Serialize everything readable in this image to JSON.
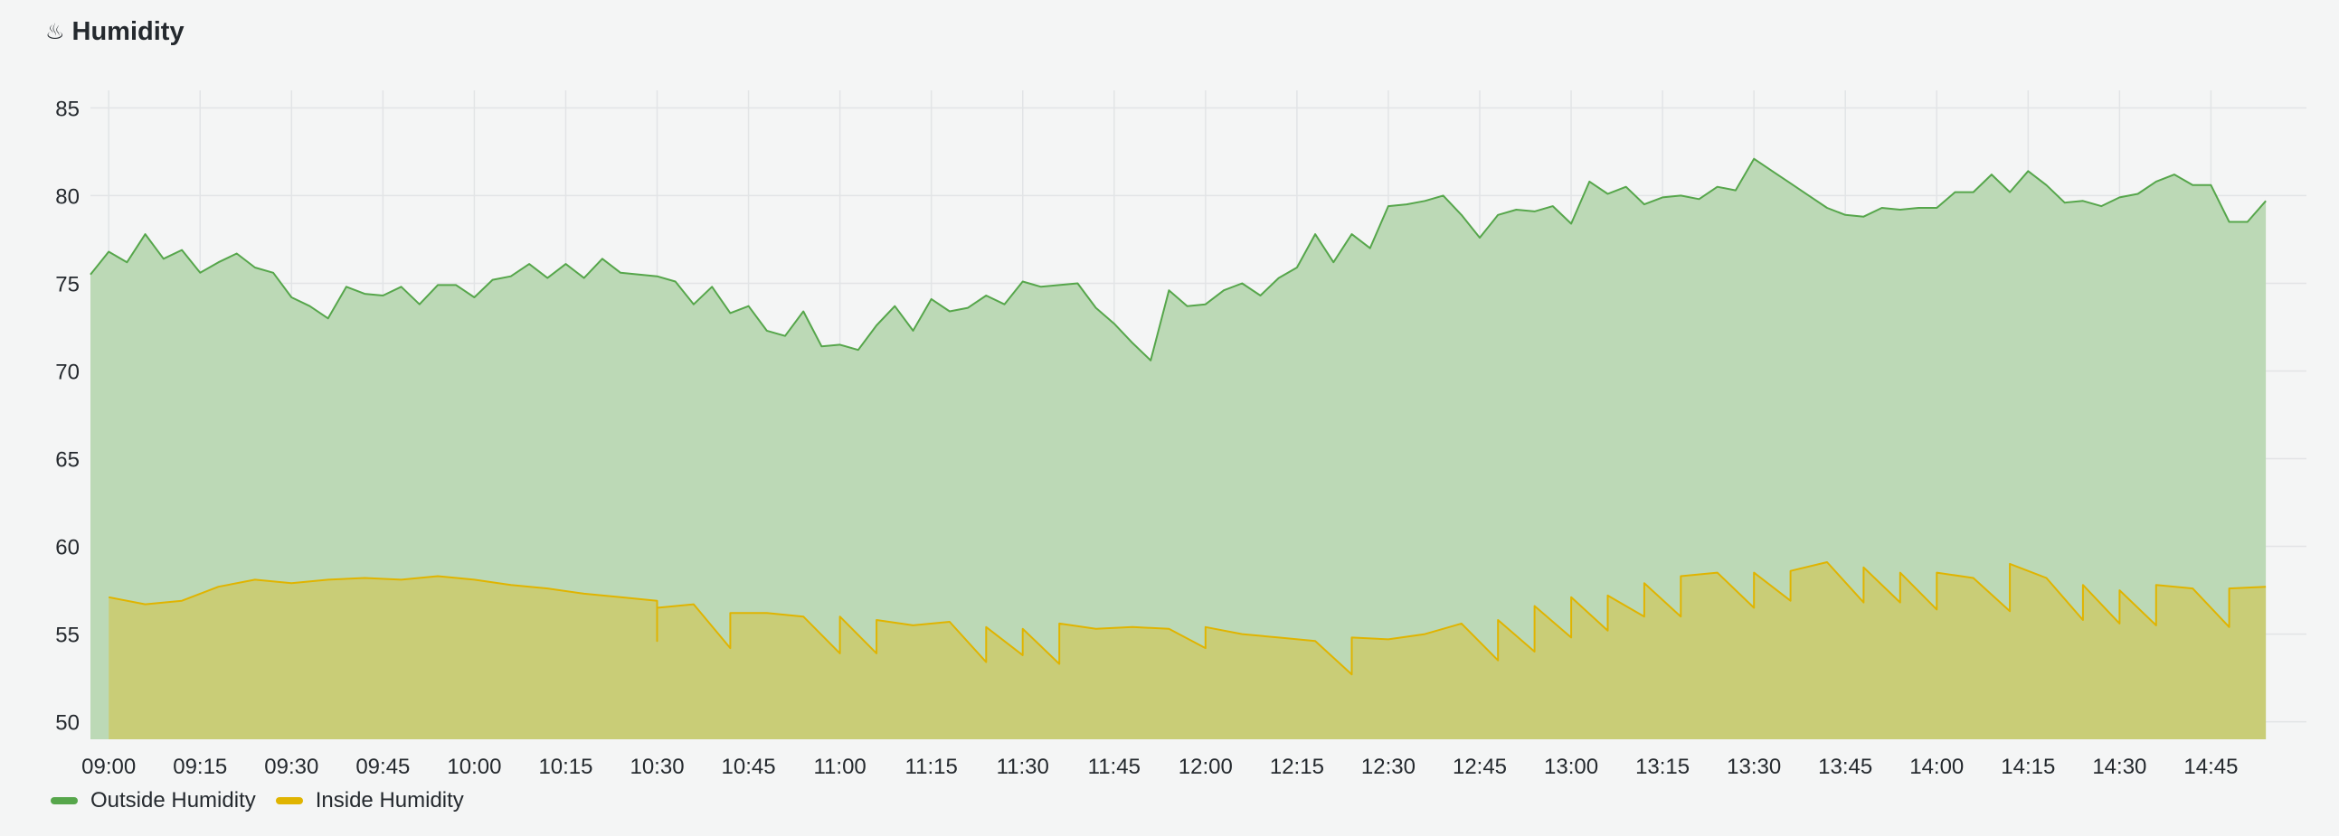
{
  "panel": {
    "title": "Humidity",
    "icon": "hot-springs-icon"
  },
  "chart_data": {
    "type": "area",
    "title": "Humidity",
    "xlabel": "",
    "ylabel": "",
    "x_ticks": [
      "09:00",
      "09:15",
      "09:30",
      "09:45",
      "10:00",
      "10:15",
      "10:30",
      "10:45",
      "11:00",
      "11:15",
      "11:30",
      "11:45",
      "12:00",
      "12:15",
      "12:30",
      "12:45",
      "13:00",
      "13:15",
      "13:30",
      "13:45",
      "14:00",
      "14:15",
      "14:30",
      "14:45"
    ],
    "y_ticks": [
      50,
      55,
      60,
      65,
      70,
      75,
      80,
      85
    ],
    "ylim": [
      49,
      86
    ],
    "xlim": [
      "08:57",
      "14:58"
    ],
    "grid": true,
    "legend": "bottom-left",
    "series": [
      {
        "name": "Outside Humidity",
        "color": "#56a64b",
        "fill": "#bcd9b6",
        "points": [
          [
            "08:57",
            75.5
          ],
          [
            "09:00",
            76.8
          ],
          [
            "09:03",
            76.2
          ],
          [
            "09:06",
            77.8
          ],
          [
            "09:09",
            76.4
          ],
          [
            "09:12",
            76.9
          ],
          [
            "09:15",
            75.6
          ],
          [
            "09:18",
            76.2
          ],
          [
            "09:21",
            76.7
          ],
          [
            "09:24",
            75.9
          ],
          [
            "09:27",
            75.6
          ],
          [
            "09:30",
            74.2
          ],
          [
            "09:33",
            73.7
          ],
          [
            "09:36",
            73.0
          ],
          [
            "09:39",
            74.8
          ],
          [
            "09:42",
            74.4
          ],
          [
            "09:45",
            74.3
          ],
          [
            "09:48",
            74.8
          ],
          [
            "09:51",
            73.8
          ],
          [
            "09:54",
            74.9
          ],
          [
            "09:57",
            74.9
          ],
          [
            "10:00",
            74.2
          ],
          [
            "10:03",
            75.2
          ],
          [
            "10:06",
            75.4
          ],
          [
            "10:09",
            76.1
          ],
          [
            "10:12",
            75.3
          ],
          [
            "10:15",
            76.1
          ],
          [
            "10:18",
            75.3
          ],
          [
            "10:21",
            76.4
          ],
          [
            "10:24",
            75.6
          ],
          [
            "10:27",
            75.5
          ],
          [
            "10:30",
            75.4
          ],
          [
            "10:33",
            75.1
          ],
          [
            "10:36",
            73.8
          ],
          [
            "10:39",
            74.8
          ],
          [
            "10:42",
            73.3
          ],
          [
            "10:45",
            73.7
          ],
          [
            "10:48",
            72.3
          ],
          [
            "10:51",
            72.0
          ],
          [
            "10:54",
            73.4
          ],
          [
            "10:57",
            71.4
          ],
          [
            "11:00",
            71.5
          ],
          [
            "11:03",
            71.2
          ],
          [
            "11:06",
            72.6
          ],
          [
            "11:09",
            73.7
          ],
          [
            "11:12",
            72.3
          ],
          [
            "11:15",
            74.1
          ],
          [
            "11:18",
            73.4
          ],
          [
            "11:21",
            73.6
          ],
          [
            "11:24",
            74.3
          ],
          [
            "11:27",
            73.8
          ],
          [
            "11:30",
            75.1
          ],
          [
            "11:33",
            74.8
          ],
          [
            "11:36",
            74.9
          ],
          [
            "11:39",
            75.0
          ],
          [
            "11:42",
            73.6
          ],
          [
            "11:45",
            72.7
          ],
          [
            "11:48",
            71.6
          ],
          [
            "11:51",
            70.6
          ],
          [
            "11:54",
            74.6
          ],
          [
            "11:57",
            73.7
          ],
          [
            "12:00",
            73.8
          ],
          [
            "12:03",
            74.6
          ],
          [
            "12:06",
            75.0
          ],
          [
            "12:09",
            74.3
          ],
          [
            "12:12",
            75.3
          ],
          [
            "12:15",
            75.9
          ],
          [
            "12:18",
            77.8
          ],
          [
            "12:21",
            76.2
          ],
          [
            "12:24",
            77.8
          ],
          [
            "12:27",
            77.0
          ],
          [
            "12:30",
            79.4
          ],
          [
            "12:33",
            79.5
          ],
          [
            "12:36",
            79.7
          ],
          [
            "12:39",
            80.0
          ],
          [
            "12:42",
            78.9
          ],
          [
            "12:45",
            77.6
          ],
          [
            "12:48",
            78.9
          ],
          [
            "12:51",
            79.2
          ],
          [
            "12:54",
            79.1
          ],
          [
            "12:57",
            79.4
          ],
          [
            "13:00",
            78.4
          ],
          [
            "13:03",
            80.8
          ],
          [
            "13:06",
            80.1
          ],
          [
            "13:09",
            80.5
          ],
          [
            "13:12",
            79.5
          ],
          [
            "13:15",
            79.9
          ],
          [
            "13:18",
            80.0
          ],
          [
            "13:21",
            79.8
          ],
          [
            "13:24",
            80.5
          ],
          [
            "13:27",
            80.3
          ],
          [
            "13:30",
            82.1
          ],
          [
            "13:33",
            81.4
          ],
          [
            "13:36",
            80.7
          ],
          [
            "13:39",
            80.0
          ],
          [
            "13:42",
            79.3
          ],
          [
            "13:45",
            78.9
          ],
          [
            "13:48",
            78.8
          ],
          [
            "13:51",
            79.3
          ],
          [
            "13:54",
            79.2
          ],
          [
            "13:57",
            79.3
          ],
          [
            "14:00",
            79.3
          ],
          [
            "14:03",
            80.2
          ],
          [
            "14:06",
            80.2
          ],
          [
            "14:09",
            81.2
          ],
          [
            "14:12",
            80.2
          ],
          [
            "14:15",
            81.4
          ],
          [
            "14:18",
            80.6
          ],
          [
            "14:21",
            79.6
          ],
          [
            "14:24",
            79.7
          ],
          [
            "14:27",
            79.4
          ],
          [
            "14:30",
            79.9
          ],
          [
            "14:33",
            80.1
          ],
          [
            "14:36",
            80.8
          ],
          [
            "14:39",
            81.2
          ],
          [
            "14:42",
            80.6
          ],
          [
            "14:45",
            80.6
          ],
          [
            "14:48",
            78.5
          ],
          [
            "14:51",
            78.5
          ],
          [
            "14:54",
            79.7
          ]
        ]
      },
      {
        "name": "Inside Humidity",
        "color": "#e0b400",
        "fill": "#c9cd77",
        "points": [
          [
            "09:00",
            57.1
          ],
          [
            "09:06",
            56.7
          ],
          [
            "09:12",
            56.9
          ],
          [
            "09:18",
            57.7
          ],
          [
            "09:24",
            58.1
          ],
          [
            "09:30",
            57.9
          ],
          [
            "09:36",
            58.1
          ],
          [
            "09:42",
            58.2
          ],
          [
            "09:48",
            58.1
          ],
          [
            "09:54",
            58.3
          ],
          [
            "10:00",
            58.1
          ],
          [
            "10:06",
            57.8
          ],
          [
            "10:12",
            57.6
          ],
          [
            "10:18",
            57.3
          ],
          [
            "10:24",
            57.1
          ],
          [
            "10:30",
            56.9
          ],
          [
            "10:30",
            56.9
          ],
          [
            "10:30",
            54.6
          ],
          [
            "10:30",
            56.5
          ],
          [
            "10:36",
            56.7
          ],
          [
            "10:42",
            54.2
          ],
          [
            "10:42",
            56.2
          ],
          [
            "10:48",
            56.2
          ],
          [
            "10:54",
            56.0
          ],
          [
            "11:00",
            53.9
          ],
          [
            "11:00",
            56.0
          ],
          [
            "11:06",
            53.9
          ],
          [
            "11:06",
            55.8
          ],
          [
            "11:12",
            55.5
          ],
          [
            "11:18",
            55.7
          ],
          [
            "11:24",
            53.4
          ],
          [
            "11:24",
            55.4
          ],
          [
            "11:30",
            53.8
          ],
          [
            "11:30",
            55.3
          ],
          [
            "11:36",
            53.3
          ],
          [
            "11:36",
            55.6
          ],
          [
            "11:42",
            55.3
          ],
          [
            "11:48",
            55.4
          ],
          [
            "11:54",
            55.3
          ],
          [
            "12:00",
            54.2
          ],
          [
            "12:00",
            55.4
          ],
          [
            "12:06",
            55.0
          ],
          [
            "12:12",
            54.8
          ],
          [
            "12:18",
            54.6
          ],
          [
            "12:24",
            52.7
          ],
          [
            "12:24",
            54.8
          ],
          [
            "12:30",
            54.7
          ],
          [
            "12:36",
            55.0
          ],
          [
            "12:42",
            55.6
          ],
          [
            "12:48",
            53.5
          ],
          [
            "12:48",
            55.8
          ],
          [
            "12:54",
            54.0
          ],
          [
            "12:54",
            56.6
          ],
          [
            "13:00",
            54.8
          ],
          [
            "13:00",
            57.1
          ],
          [
            "13:06",
            55.2
          ],
          [
            "13:06",
            57.2
          ],
          [
            "13:12",
            56.0
          ],
          [
            "13:12",
            57.9
          ],
          [
            "13:18",
            56.0
          ],
          [
            "13:18",
            58.3
          ],
          [
            "13:24",
            58.5
          ],
          [
            "13:30",
            56.5
          ],
          [
            "13:30",
            58.5
          ],
          [
            "13:36",
            56.9
          ],
          [
            "13:36",
            58.6
          ],
          [
            "13:42",
            59.1
          ],
          [
            "13:48",
            56.8
          ],
          [
            "13:48",
            58.8
          ],
          [
            "13:54",
            56.8
          ],
          [
            "13:54",
            58.5
          ],
          [
            "14:00",
            56.4
          ],
          [
            "14:00",
            58.5
          ],
          [
            "14:06",
            58.2
          ],
          [
            "14:12",
            56.3
          ],
          [
            "14:12",
            59.0
          ],
          [
            "14:18",
            58.2
          ],
          [
            "14:24",
            55.8
          ],
          [
            "14:24",
            57.8
          ],
          [
            "14:30",
            55.6
          ],
          [
            "14:30",
            57.5
          ],
          [
            "14:36",
            55.5
          ],
          [
            "14:36",
            57.8
          ],
          [
            "14:42",
            57.6
          ],
          [
            "14:48",
            55.4
          ],
          [
            "14:48",
            57.6
          ],
          [
            "14:54",
            57.7
          ]
        ]
      }
    ]
  }
}
